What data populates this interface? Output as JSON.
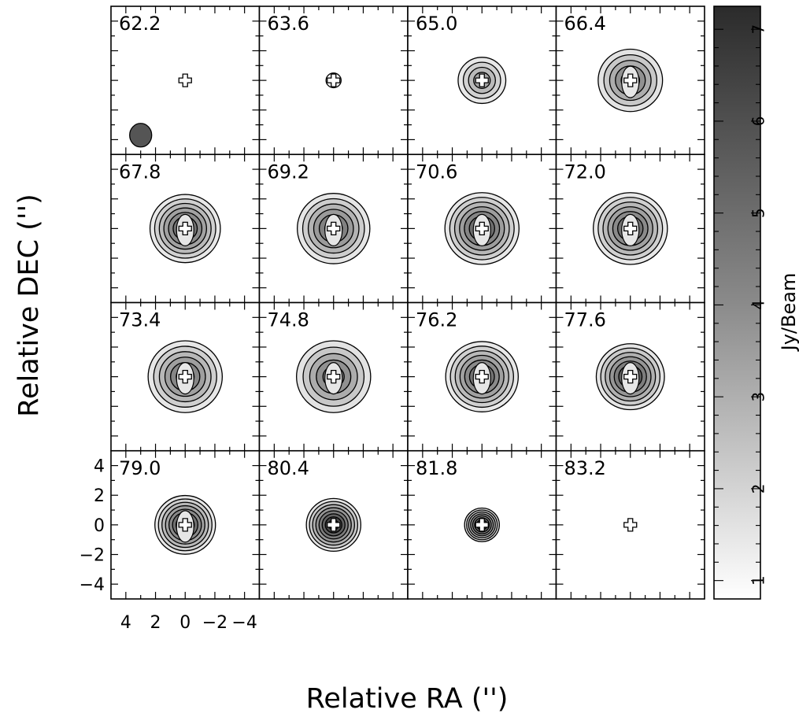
{
  "chart_data": {
    "type": "heatmap",
    "xlabel": "Relative RA ('')",
    "ylabel": "Relative DEC ('')",
    "colorbar": {
      "label": "Jy/Beam",
      "range": [
        0.8,
        7.25
      ],
      "ticks": [
        1,
        2,
        3,
        4,
        5,
        6,
        7
      ],
      "colormap": "grayscale (white = low, black = high)"
    },
    "axis_ticks": {
      "x_values": [
        4,
        2,
        0,
        -2,
        -4
      ],
      "x_labels": [
        "4",
        "2",
        "0",
        "−2",
        "−4"
      ],
      "y_values": [
        4,
        2,
        0,
        -2,
        -4
      ],
      "y_labels": [
        "4",
        "2",
        "0",
        "−2",
        "−4"
      ]
    },
    "xlim": [
      5,
      -5
    ],
    "ylim": [
      -5,
      5
    ],
    "marker": "plus at (0, 0) in every channel",
    "beam": {
      "shown_in_channel": "62.2",
      "center": [
        3,
        -3.7
      ]
    },
    "channels": [
      {
        "label": "62.2",
        "peak": 1.0,
        "radius": 0.0
      },
      {
        "label": "63.6",
        "peak": 1.2,
        "radius": 0.2
      },
      {
        "label": "65.0",
        "peak": 3.6,
        "radius": 0.63
      },
      {
        "label": "66.4",
        "peak": 5.0,
        "radius": 0.85
      },
      {
        "label": "67.8",
        "peak": 5.8,
        "radius": 0.93
      },
      {
        "label": "69.2",
        "peak": 5.4,
        "radius": 0.96
      },
      {
        "label": "70.6",
        "peak": 6.0,
        "radius": 0.98
      },
      {
        "label": "72.0",
        "peak": 5.8,
        "radius": 0.98
      },
      {
        "label": "73.4",
        "peak": 5.2,
        "radius": 0.98
      },
      {
        "label": "74.8",
        "peak": 5.0,
        "radius": 0.98
      },
      {
        "label": "76.2",
        "peak": 5.8,
        "radius": 0.96
      },
      {
        "label": "77.6",
        "peak": 6.4,
        "radius": 0.9
      },
      {
        "label": "79.0",
        "peak": 6.6,
        "radius": 0.8
      },
      {
        "label": "80.4",
        "peak": 7.2,
        "radius": 0.72
      },
      {
        "label": "81.8",
        "peak": 7.0,
        "radius": 0.46
      },
      {
        "label": "83.2",
        "peak": 0.0,
        "radius": 0.0
      }
    ]
  }
}
